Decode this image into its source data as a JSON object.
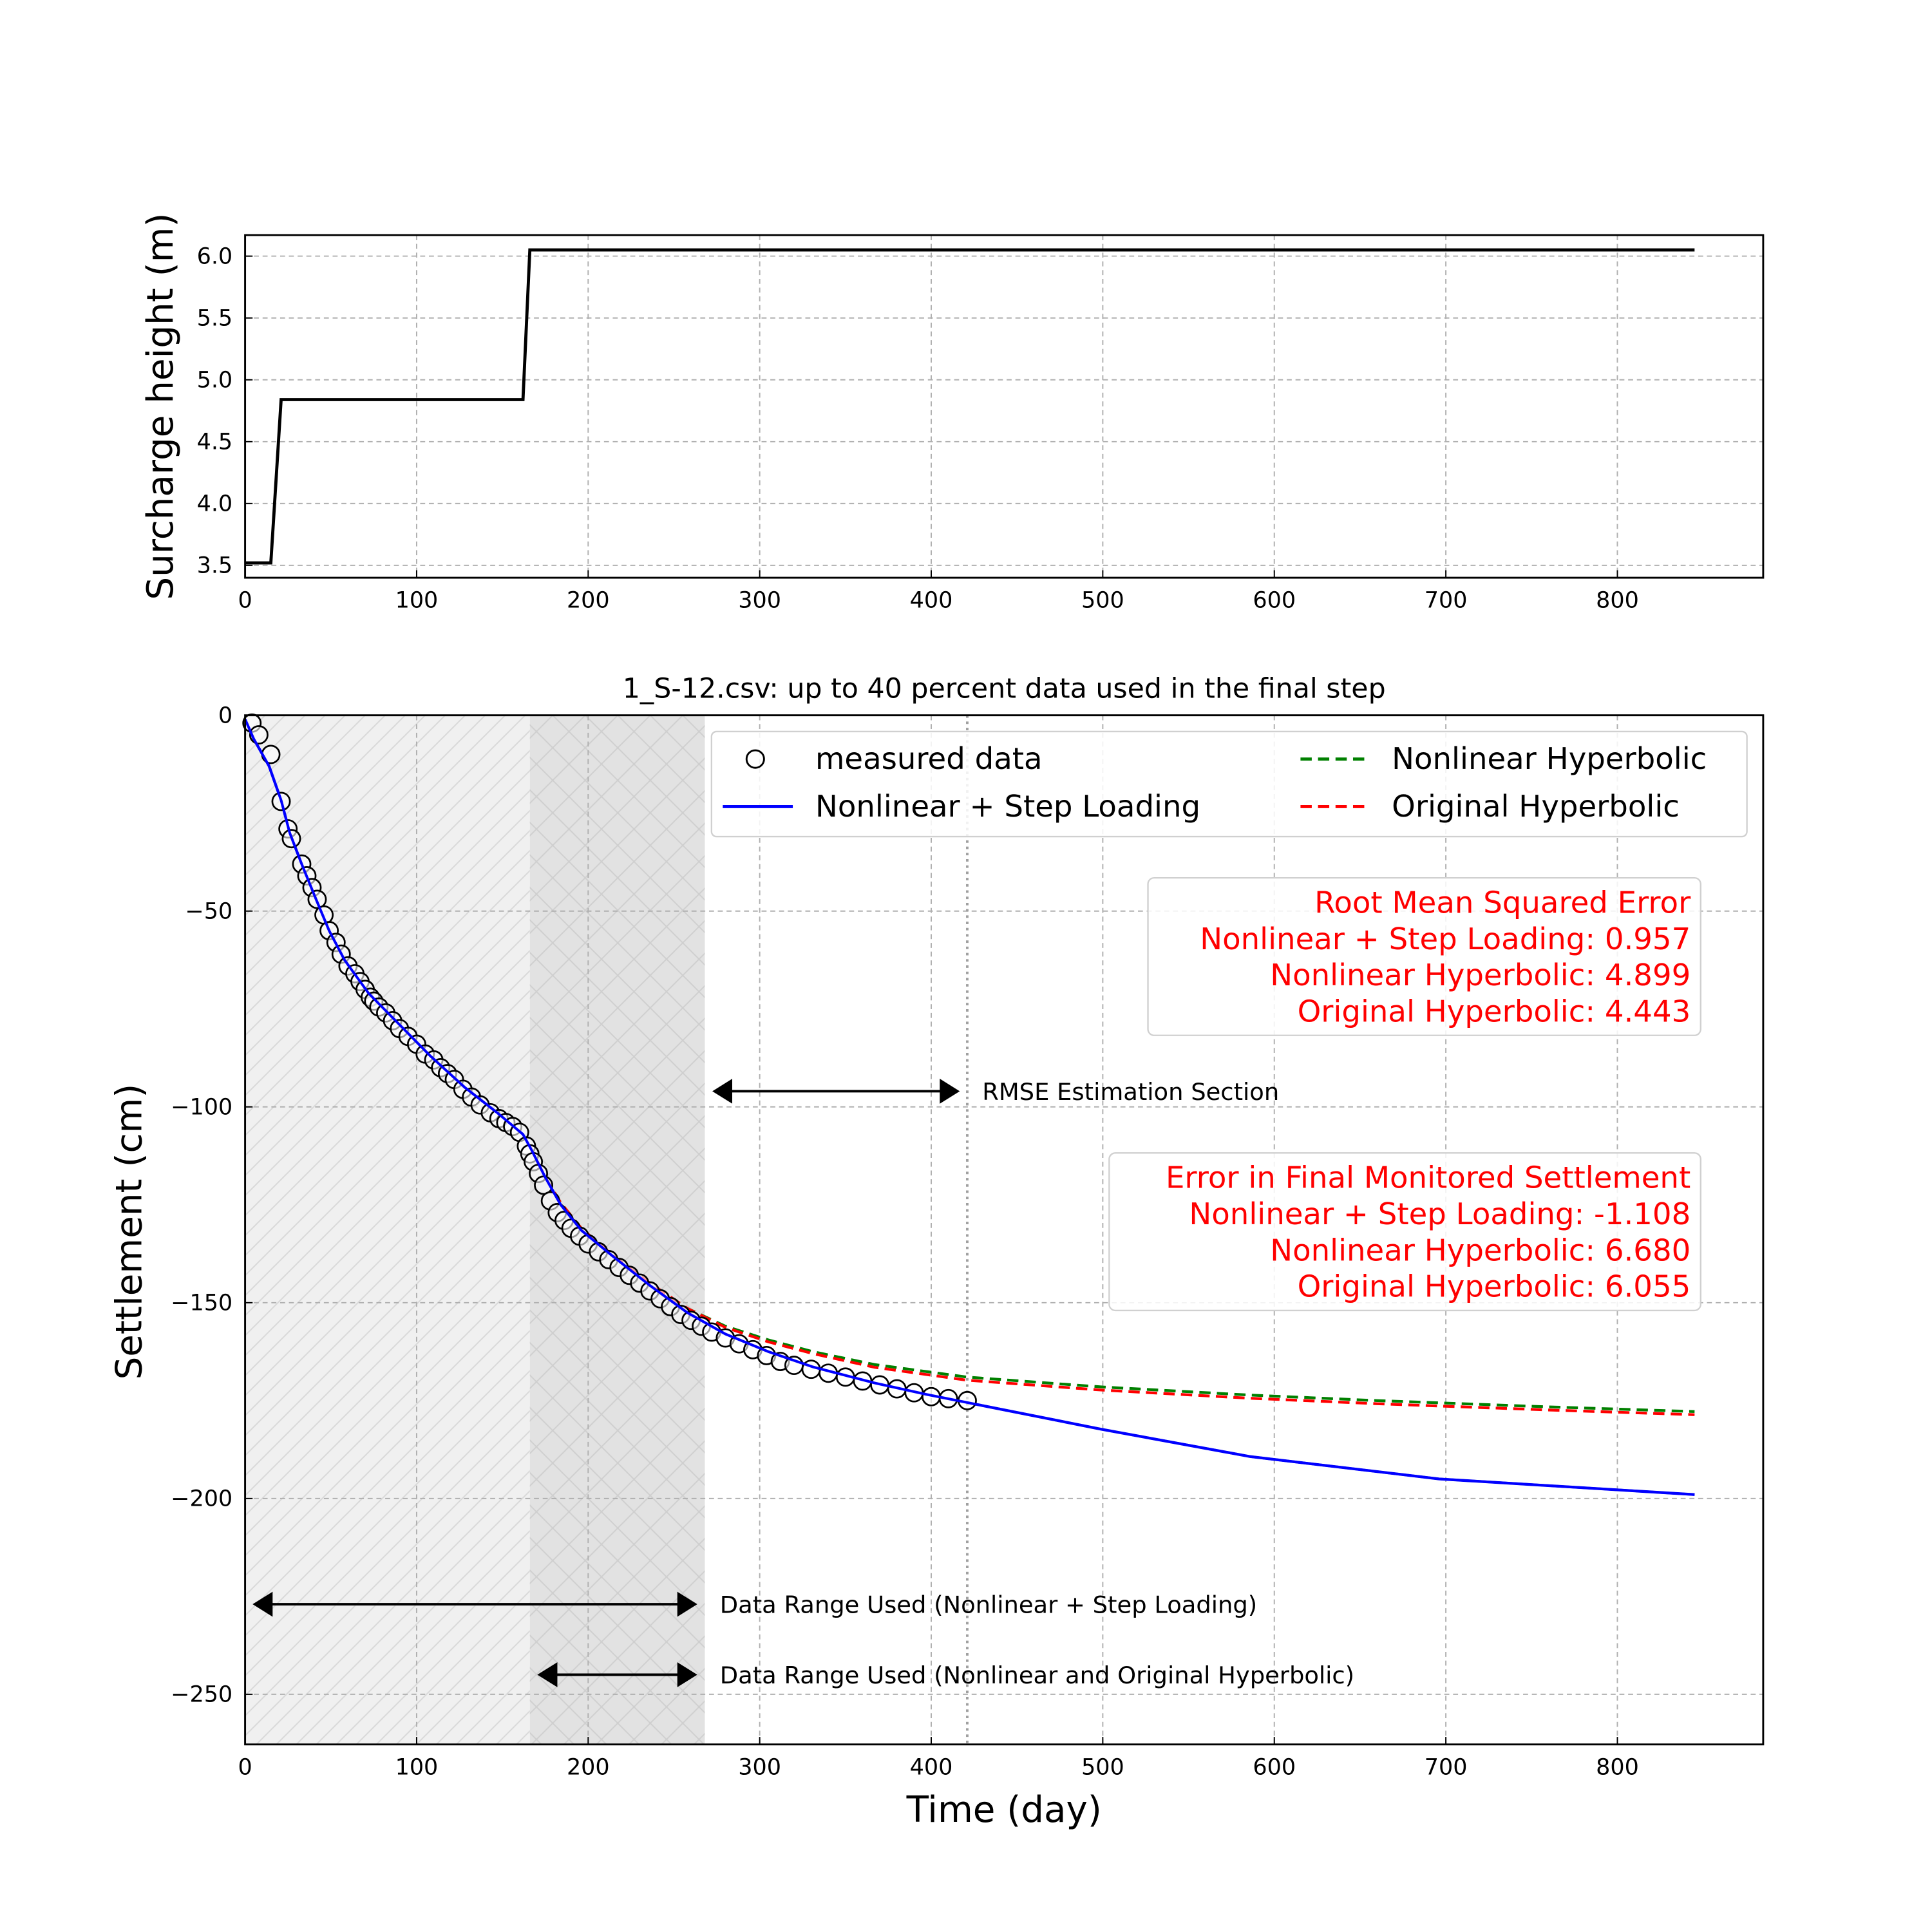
{
  "chart_data": [
    {
      "type": "line",
      "ylabel": "Surcharge height (m)",
      "xlim": [
        0,
        885
      ],
      "ylim": [
        3.4,
        6.17
      ],
      "xticks": [
        "0",
        "100",
        "200",
        "300",
        "400",
        "500",
        "600",
        "700",
        "800"
      ],
      "yticks": [
        "3.5",
        "4.0",
        "4.5",
        "5.0",
        "5.5",
        "6.0"
      ],
      "grid": true,
      "series": [
        {
          "name": "surcharge",
          "color": "#000000",
          "points": [
            [
              0,
              3.52
            ],
            [
              15,
              3.52
            ],
            [
              21,
              4.84
            ],
            [
              162,
              4.84
            ],
            [
              166,
              6.05
            ],
            [
              845,
              6.05
            ]
          ]
        }
      ]
    },
    {
      "type": "scatter+line",
      "title": "1_S-12.csv: up to 40 percent data used in the final step",
      "xlabel": "Time (day)",
      "ylabel": "Settlement (cm)",
      "xlim": [
        0,
        885
      ],
      "ylim": [
        -262.8,
        0
      ],
      "xticks": [
        "0",
        "100",
        "200",
        "300",
        "400",
        "500",
        "600",
        "700",
        "800"
      ],
      "yticks": [
        "0",
        "−50",
        "−100",
        "−150",
        "−200",
        "−250"
      ],
      "grid": true,
      "legend": {
        "placement": "top-right",
        "entries": [
          "measured data",
          "Nonlinear + Step Loading",
          "Nonlinear Hyperbolic",
          "Original Hyperbolic"
        ]
      },
      "measured": [
        [
          4,
          -2
        ],
        [
          8,
          -5
        ],
        [
          15,
          -10
        ],
        [
          21,
          -22
        ],
        [
          25,
          -29
        ],
        [
          27,
          -31.5
        ],
        [
          33,
          -38
        ],
        [
          36,
          -41
        ],
        [
          39,
          -44
        ],
        [
          42,
          -47
        ],
        [
          46,
          -51
        ],
        [
          49,
          -55
        ],
        [
          53,
          -58
        ],
        [
          56,
          -61
        ],
        [
          60,
          -64
        ],
        [
          64,
          -66
        ],
        [
          67,
          -68
        ],
        [
          70,
          -70
        ],
        [
          73,
          -72
        ],
        [
          75,
          -73
        ],
        [
          78,
          -74.5
        ],
        [
          82,
          -76
        ],
        [
          86,
          -78
        ],
        [
          90,
          -80
        ],
        [
          95,
          -82
        ],
        [
          100,
          -84
        ],
        [
          105,
          -86.5
        ],
        [
          110,
          -88
        ],
        [
          114,
          -90
        ],
        [
          118,
          -91.5
        ],
        [
          122,
          -93
        ],
        [
          127,
          -95.5
        ],
        [
          132,
          -97.5
        ],
        [
          137,
          -99.5
        ],
        [
          143,
          -101.5
        ],
        [
          148,
          -103
        ],
        [
          152,
          -104
        ],
        [
          156,
          -105
        ],
        [
          160,
          -106.5
        ],
        [
          164,
          -110
        ],
        [
          166,
          -112
        ],
        [
          168,
          -114
        ],
        [
          171,
          -117
        ],
        [
          174,
          -120
        ],
        [
          178,
          -124
        ],
        [
          182,
          -127
        ],
        [
          186,
          -129
        ],
        [
          190,
          -131
        ],
        [
          195,
          -133
        ],
        [
          200,
          -135
        ],
        [
          206,
          -137
        ],
        [
          212,
          -139
        ],
        [
          218,
          -141
        ],
        [
          224,
          -143
        ],
        [
          230,
          -145
        ],
        [
          236,
          -147
        ],
        [
          242,
          -149
        ],
        [
          248,
          -151
        ],
        [
          254,
          -153
        ],
        [
          260,
          -154.5
        ],
        [
          266,
          -156
        ],
        [
          272,
          -157.5
        ],
        [
          280,
          -159
        ],
        [
          288,
          -160.5
        ],
        [
          296,
          -162
        ],
        [
          304,
          -163.5
        ],
        [
          312,
          -165
        ],
        [
          320,
          -166
        ],
        [
          330,
          -167
        ],
        [
          340,
          -168
        ],
        [
          350,
          -169
        ],
        [
          360,
          -170
        ],
        [
          370,
          -171
        ],
        [
          380,
          -172
        ],
        [
          390,
          -173
        ],
        [
          400,
          -174
        ],
        [
          410,
          -174.5
        ],
        [
          421,
          -175
        ]
      ],
      "series": [
        {
          "name": "Nonlinear + Step Loading",
          "color": "#0000ff",
          "dash": false,
          "points": [
            [
              0,
              -1
            ],
            [
              5,
              -6
            ],
            [
              14,
              -13
            ],
            [
              21,
              -21.7
            ],
            [
              26,
              -30
            ],
            [
              33,
              -38
            ],
            [
              41,
              -46.6
            ],
            [
              49,
              -55
            ],
            [
              58,
              -62.5
            ],
            [
              72,
              -71
            ],
            [
              90,
              -79
            ],
            [
              108,
              -87
            ],
            [
              128,
              -95
            ],
            [
              147,
              -101.5
            ],
            [
              162,
              -107
            ],
            [
              167,
              -111
            ],
            [
              175,
              -118
            ],
            [
              184,
              -125
            ],
            [
              196,
              -131.5
            ],
            [
              214,
              -138
            ],
            [
              236,
              -145.6
            ],
            [
              258,
              -152.6
            ],
            [
              280,
              -158
            ],
            [
              305,
              -162.5
            ],
            [
              331,
              -166.4
            ],
            [
              367,
              -170.5
            ],
            [
              397,
              -173.4
            ],
            [
              421,
              -175.5
            ],
            [
              499,
              -182.3
            ],
            [
              586,
              -189.3
            ],
            [
              696,
              -195
            ],
            [
              845,
              -199
            ]
          ]
        },
        {
          "name": "Nonlinear Hyperbolic",
          "color": "#008000",
          "dash": true,
          "points": [
            [
              166,
              -110
            ],
            [
              175,
              -118
            ],
            [
              184,
              -124.5
            ],
            [
              196,
              -131
            ],
            [
              214,
              -137.8
            ],
            [
              236,
              -145
            ],
            [
              258,
              -151.5
            ],
            [
              280,
              -156
            ],
            [
              305,
              -159.5
            ],
            [
              331,
              -162.5
            ],
            [
              367,
              -165.8
            ],
            [
              421,
              -169
            ],
            [
              499,
              -171.5
            ],
            [
              586,
              -173.6
            ],
            [
              660,
              -175
            ],
            [
              760,
              -176.6
            ],
            [
              845,
              -177.8
            ]
          ]
        },
        {
          "name": "Original Hyperbolic",
          "color": "#ff0000",
          "dash": true,
          "points": [
            [
              166,
              -110
            ],
            [
              175,
              -118
            ],
            [
              184,
              -124.5
            ],
            [
              196,
              -131
            ],
            [
              214,
              -137.8
            ],
            [
              236,
              -145
            ],
            [
              258,
              -151.5
            ],
            [
              280,
              -156.3
            ],
            [
              305,
              -160
            ],
            [
              331,
              -163
            ],
            [
              367,
              -166.5
            ],
            [
              421,
              -169.8
            ],
            [
              499,
              -172.3
            ],
            [
              586,
              -174.4
            ],
            [
              660,
              -175.8
            ],
            [
              760,
              -177.4
            ],
            [
              845,
              -178.6
            ]
          ]
        }
      ],
      "regions": [
        {
          "from": 0,
          "to": 166,
          "shade": "#f0f0f0",
          "hatch": "/"
        },
        {
          "from": 166,
          "to": 268,
          "shade": "#e2e2e2",
          "hatch": "x"
        }
      ],
      "vline": 421,
      "annotations": {
        "rmse_box": {
          "color": "#ff0000",
          "lines": [
            "Root Mean Squared Error",
            "Nonlinear + Step Loading: 0.957",
            "Nonlinear Hyperbolic: 4.899",
            "Original Hyperbolic: 4.443"
          ]
        },
        "final_box": {
          "color": "#ff0000",
          "lines": [
            "Error in Final Monitored Settlement",
            "Nonlinear + Step Loading: -1.108",
            "Nonlinear Hyperbolic: 6.680",
            "Original Hyperbolic: 6.055"
          ]
        },
        "arrows": [
          {
            "label": "RMSE Estimation Section",
            "from": 268,
            "to": 421,
            "y": -96
          },
          {
            "label": "Data Range Used (Nonlinear + Step Loading)",
            "from": 0,
            "to": 268,
            "y": -227
          },
          {
            "label": "Data Range Used (Nonlinear and Original Hyperbolic)",
            "from": 166,
            "to": 268,
            "y": -245
          }
        ]
      }
    }
  ]
}
